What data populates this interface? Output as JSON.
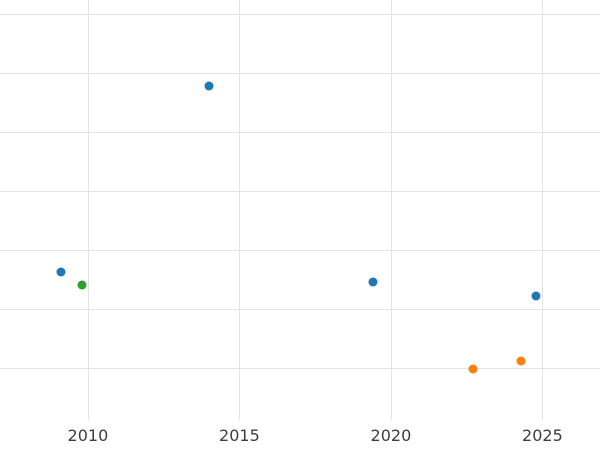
{
  "chart_data": {
    "type": "scatter",
    "title": "",
    "xlabel": "",
    "ylabel": "",
    "x_ticks": [
      2010,
      2015,
      2020,
      2025
    ],
    "x_tick_labels": [
      "2010",
      "2015",
      "2020",
      "2025"
    ],
    "xlim": [
      2007.1,
      2026.9
    ],
    "ylim": [
      0.12,
      7.24
    ],
    "y_gridlines": [
      1,
      2,
      3,
      4,
      5,
      6,
      7
    ],
    "y_tick_labels_visible": false,
    "grid": true,
    "legend": false,
    "grid_color": "#e3e3e3",
    "tick_label_color": "#3d3d3d",
    "background_color": "#ffffff",
    "series": [
      {
        "name": "blue",
        "color": "#1f77b4",
        "points": [
          [
            2009.1,
            2.63
          ],
          [
            2014.0,
            5.78
          ],
          [
            2019.4,
            2.46
          ],
          [
            2024.8,
            2.22
          ]
        ]
      },
      {
        "name": "orange",
        "color": "#ff7f0e",
        "points": [
          [
            2022.7,
            0.98
          ],
          [
            2024.3,
            1.12
          ]
        ]
      },
      {
        "name": "green",
        "color": "#2ca02c",
        "points": [
          [
            2009.8,
            2.41
          ]
        ]
      }
    ]
  }
}
